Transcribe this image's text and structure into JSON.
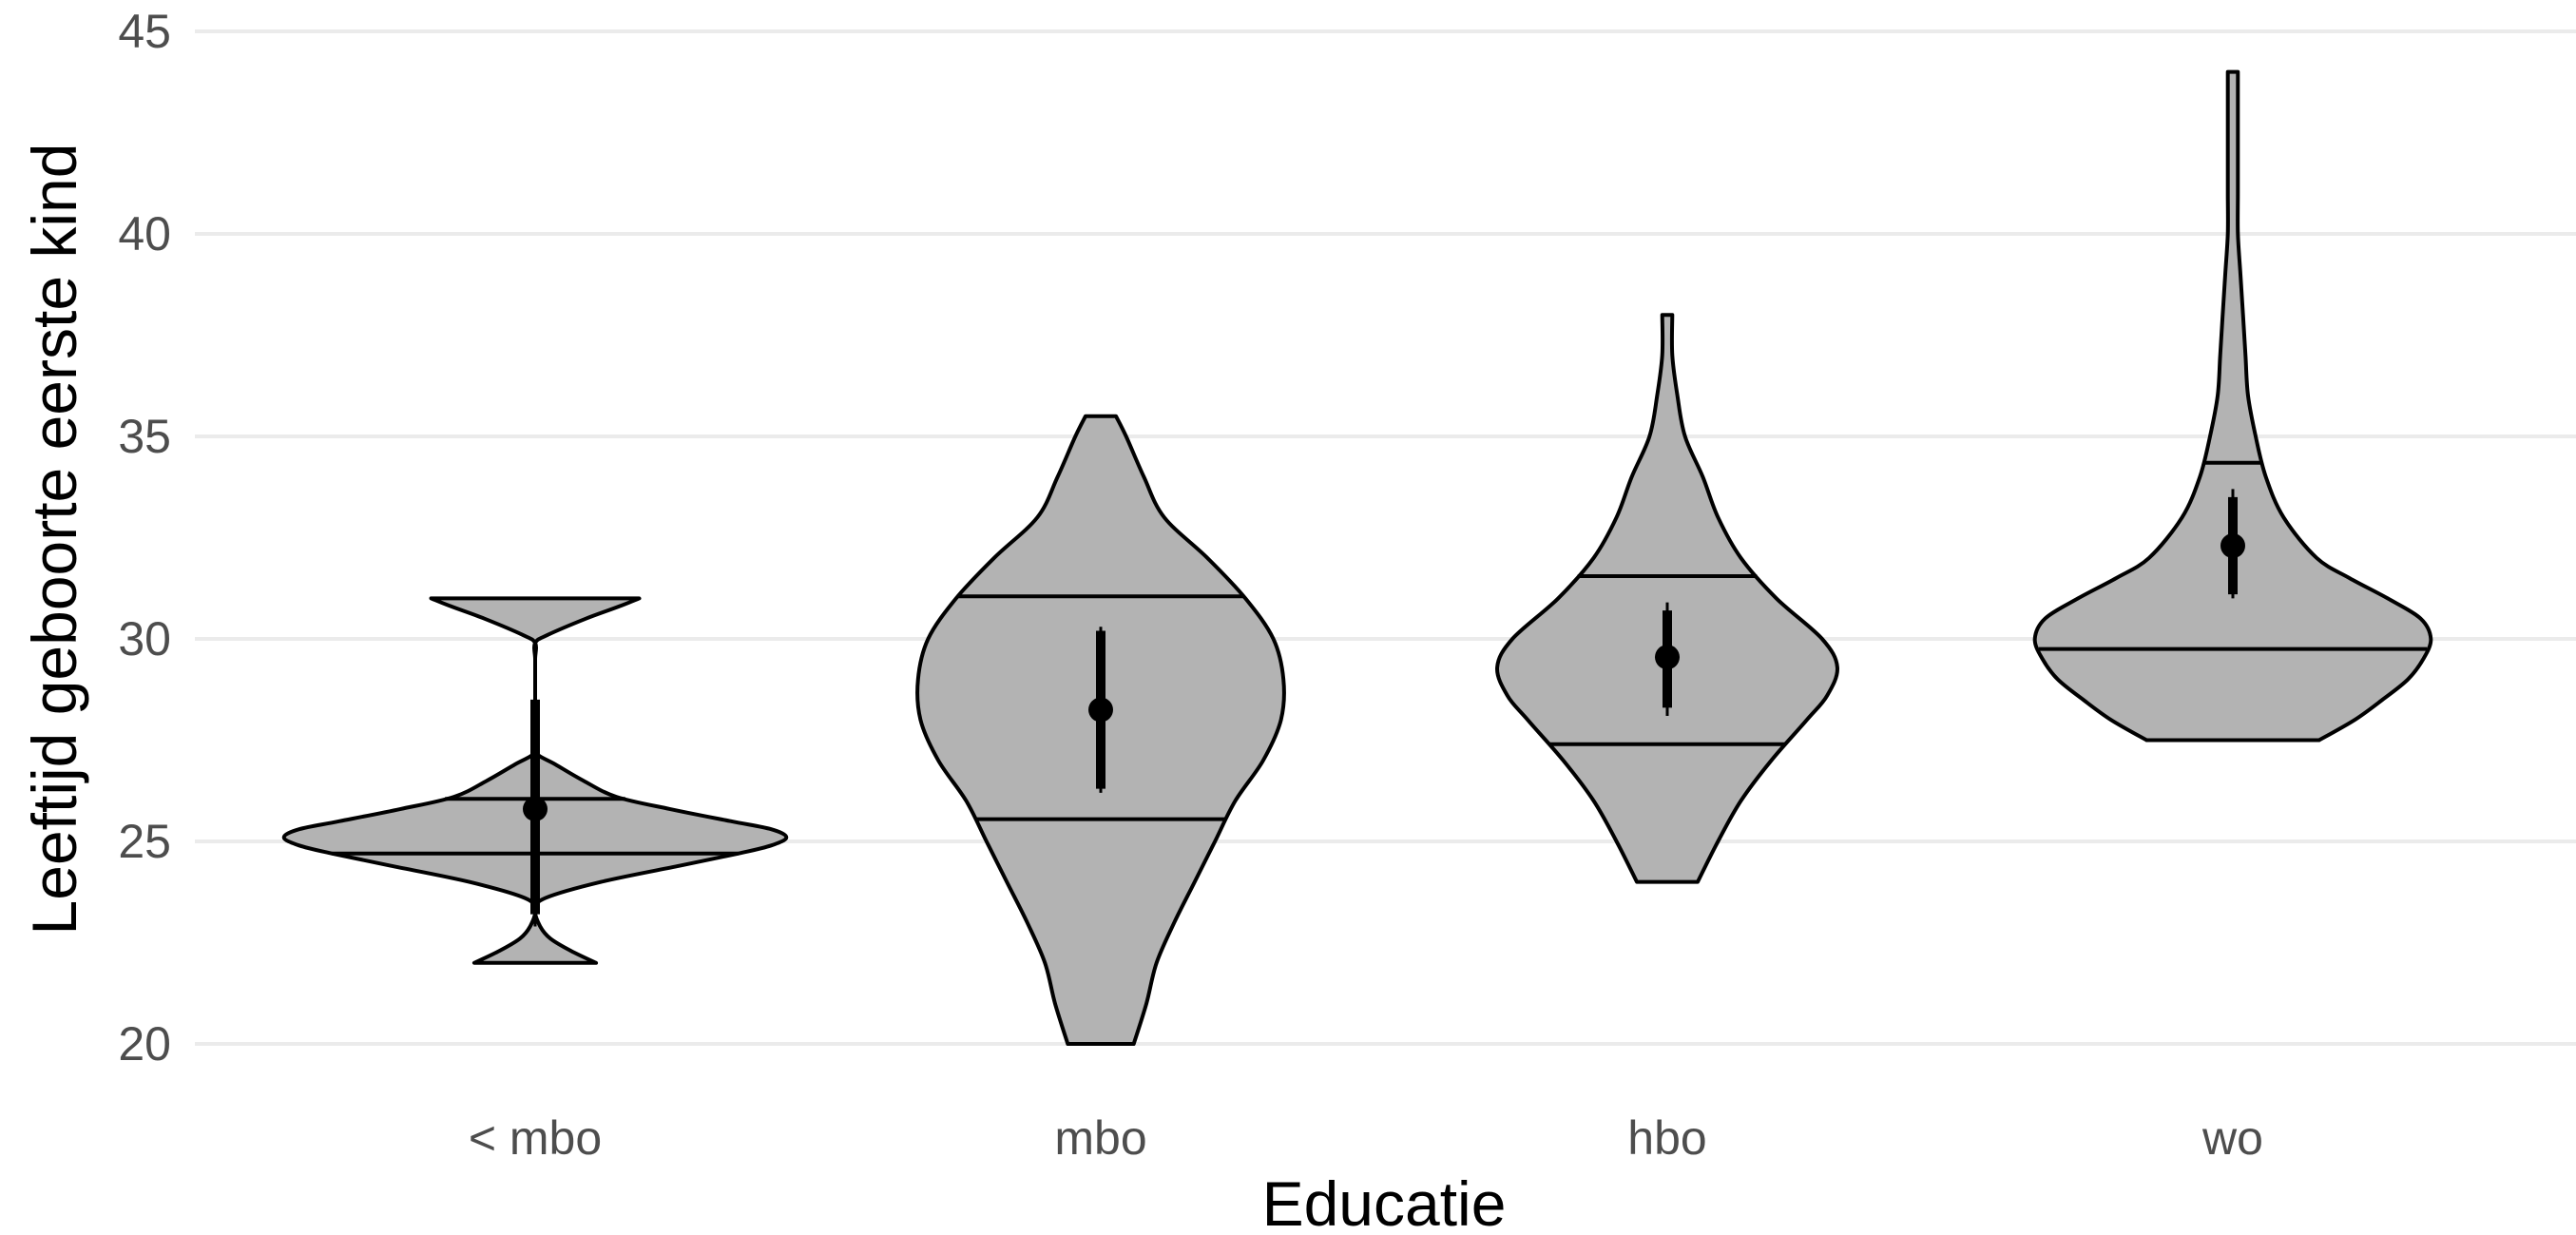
{
  "chart_data": {
    "type": "violin",
    "xlabel": "Educatie",
    "ylabel": "Leeftijd geboorte eerste kind",
    "ylim": [
      20,
      45
    ],
    "yticks": [
      20,
      25,
      30,
      35,
      40,
      45
    ],
    "y_tick_labels": [
      "20",
      "25",
      "30",
      "35",
      "40",
      "45"
    ],
    "grid": "horizontal major gridlines",
    "legend": "none",
    "colors": {
      "fill": "#b3b3b3",
      "outline": "#000000",
      "grid": "#ebebeb",
      "summary": "#000000"
    },
    "categories": [
      "< mbo",
      "mbo",
      "hbo",
      "wo"
    ],
    "groups": [
      {
        "category": "< mbo",
        "min": 22.0,
        "max": 31.0,
        "quantiles": [
          24.7,
          26.05
        ],
        "mean": 25.8,
        "ci_thin": [
          22.9,
          28.7
        ],
        "ci_thick": [
          23.2,
          28.5
        ],
        "density": [
          [
            22.0,
            0.24
          ],
          [
            22.3,
            0.14
          ],
          [
            22.6,
            0.06
          ],
          [
            22.9,
            0.02
          ],
          [
            23.3,
            0.0
          ],
          [
            23.6,
            0.04
          ],
          [
            24.0,
            0.26
          ],
          [
            24.4,
            0.57
          ],
          [
            24.7,
            0.8
          ],
          [
            24.9,
            0.93
          ],
          [
            25.1,
            0.99
          ],
          [
            25.3,
            0.93
          ],
          [
            25.5,
            0.77
          ],
          [
            25.8,
            0.53
          ],
          [
            26.1,
            0.32
          ],
          [
            26.5,
            0.19
          ],
          [
            26.9,
            0.08
          ],
          [
            27.2,
            0.0
          ],
          [
            27.6,
            0.0
          ],
          [
            28.0,
            0.0
          ],
          [
            28.5,
            0.0
          ],
          [
            29.0,
            0.0
          ],
          [
            29.5,
            0.0
          ],
          [
            29.9,
            0.0
          ],
          [
            30.1,
            0.05
          ],
          [
            30.5,
            0.2
          ],
          [
            30.8,
            0.33
          ],
          [
            31.0,
            0.41
          ]
        ]
      },
      {
        "category": "mbo",
        "min": 20.0,
        "max": 35.5,
        "quantiles": [
          25.55,
          31.05
        ],
        "mean": 28.25,
        "ci_thin": [
          26.2,
          30.3
        ],
        "ci_thick": [
          26.3,
          30.2
        ],
        "density": [
          [
            20.0,
            0.13
          ],
          [
            21.0,
            0.18
          ],
          [
            22.0,
            0.22
          ],
          [
            23.0,
            0.29
          ],
          [
            24.0,
            0.37
          ],
          [
            25.0,
            0.45
          ],
          [
            26.0,
            0.53
          ],
          [
            27.0,
            0.64
          ],
          [
            28.0,
            0.71
          ],
          [
            29.0,
            0.72
          ],
          [
            30.0,
            0.68
          ],
          [
            31.0,
            0.57
          ],
          [
            32.0,
            0.42
          ],
          [
            33.0,
            0.25
          ],
          [
            34.0,
            0.17
          ],
          [
            35.0,
            0.1
          ],
          [
            35.5,
            0.06
          ]
        ]
      },
      {
        "category": "hbo",
        "min": 24.0,
        "max": 38.0,
        "quantiles": [
          27.4,
          31.55
        ],
        "mean": 29.55,
        "ci_thin": [
          28.1,
          30.9
        ],
        "ci_thick": [
          28.3,
          30.7
        ],
        "density": [
          [
            24.0,
            0.12
          ],
          [
            25.0,
            0.2
          ],
          [
            26.0,
            0.29
          ],
          [
            27.0,
            0.41
          ],
          [
            28.0,
            0.55
          ],
          [
            28.6,
            0.63
          ],
          [
            29.3,
            0.67
          ],
          [
            30.0,
            0.61
          ],
          [
            31.0,
            0.43
          ],
          [
            32.0,
            0.29
          ],
          [
            33.0,
            0.2
          ],
          [
            34.0,
            0.14
          ],
          [
            35.0,
            0.07
          ],
          [
            36.0,
            0.04
          ],
          [
            37.0,
            0.02
          ],
          [
            38.0,
            0.02
          ]
        ]
      },
      {
        "category": "wo",
        "min": 27.5,
        "max": 44.0,
        "quantiles": [
          29.75,
          34.35
        ],
        "mean": 32.3,
        "ci_thin": [
          31.0,
          33.7
        ],
        "ci_thick": [
          31.1,
          33.5
        ],
        "density": [
          [
            27.5,
            0.34
          ],
          [
            28.0,
            0.48
          ],
          [
            28.5,
            0.59
          ],
          [
            29.0,
            0.69
          ],
          [
            29.5,
            0.75
          ],
          [
            30.0,
            0.78
          ],
          [
            30.5,
            0.74
          ],
          [
            31.0,
            0.61
          ],
          [
            31.5,
            0.46
          ],
          [
            32.0,
            0.33
          ],
          [
            33.0,
            0.2
          ],
          [
            34.0,
            0.13
          ],
          [
            35.0,
            0.09
          ],
          [
            36.0,
            0.06
          ],
          [
            37.0,
            0.05
          ],
          [
            38.0,
            0.04
          ],
          [
            39.0,
            0.03
          ],
          [
            40.0,
            0.02
          ],
          [
            41.0,
            0.02
          ],
          [
            42.0,
            0.02
          ],
          [
            43.0,
            0.02
          ],
          [
            44.0,
            0.02
          ]
        ]
      }
    ]
  }
}
